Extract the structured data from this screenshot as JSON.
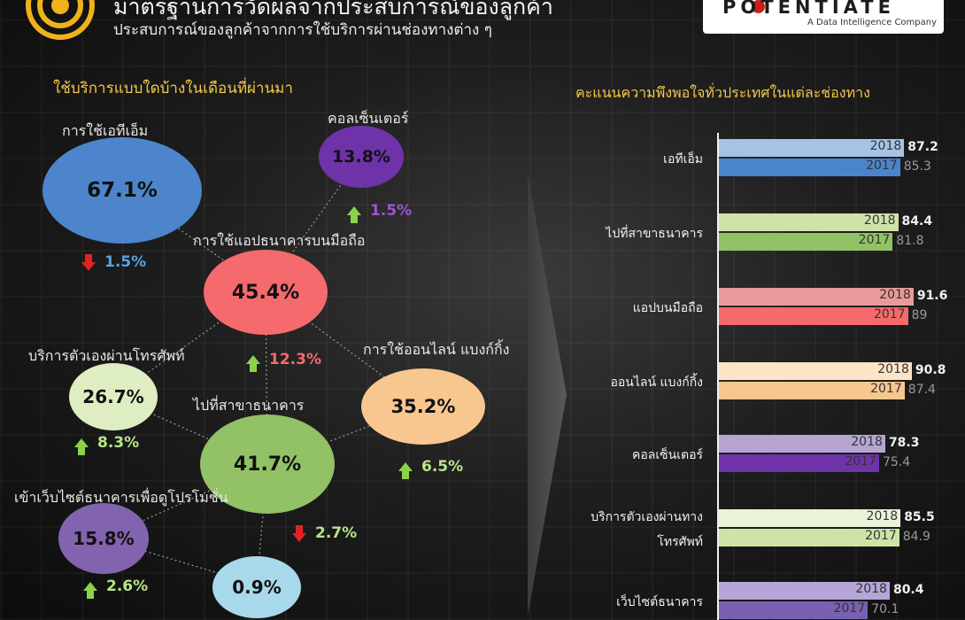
{
  "header": {
    "title": "มาตรฐานการวัดผลจากประสบการณ์ของลูกค้า",
    "subtitle": "ประสบการณ์ของลูกค้าจากการใช้บริการผ่านช่องทางต่าง ๆ",
    "logo_main": "POTENTIATE",
    "logo_sub": "A Data Intelligence Company"
  },
  "left": {
    "heading": "ใช้บริการแบบใดบ้างในเดือนที่ผ่านมา",
    "bubbles": [
      {
        "label": "การใช้เอทีเอ็ม",
        "value": "67.1%",
        "change": "1.5%",
        "dir": "down",
        "color": "#4d85cc"
      },
      {
        "label": "คอลเซ็นเตอร์",
        "value": "13.8%",
        "change": "1.5%",
        "dir": "up",
        "color": "#6e33a8",
        "change_color": "#9b55d6"
      },
      {
        "label": "การใช้แอปธนาคารบนมือถือ",
        "value": "45.4%",
        "change": "12.3%",
        "dir": "up",
        "color": "#f46a6d",
        "change_color": "#f46a6d"
      },
      {
        "label": "บริการตัวเองผ่านโทรศัพท์",
        "value": "26.7%",
        "change": "8.3%",
        "dir": "up",
        "color": "#dfeec2"
      },
      {
        "label": "การใช้ออนไลน์ แบงก์กิ้ง",
        "value": "35.2%",
        "change": "6.5%",
        "dir": "up",
        "color": "#f8c78f"
      },
      {
        "label": "ไปที่สาขาธนาคาร",
        "value": "41.7%",
        "change": "2.7%",
        "dir": "down",
        "color": "#93c166"
      },
      {
        "label": "เข้าเว็บไซต์ธนาคารเพื่อดูโปรโมชั่น",
        "value": "15.8%",
        "change": "2.6%",
        "dir": "up",
        "color": "#8263b0"
      },
      {
        "label": "",
        "value": "0.9%",
        "change": "",
        "dir": "",
        "color": "#a7d9ea"
      }
    ]
  },
  "right": {
    "heading": "คะแนนความพึงพอใจทั่วประเทศในแต่ละช่องทาง"
  },
  "chart_data": {
    "type": "bar",
    "orientation": "horizontal",
    "title": "คะแนนความพึงพอใจทั่วประเทศในแต่ละช่องทาง",
    "categories": [
      "เอทีเอ็ม",
      "ไปที่สาขาธนาคาร",
      "แอปบนมือถือ",
      "ออนไลน์ แบงก์กิ้ง",
      "คอลเซ็นเตอร์",
      "บริการตัวเองผ่านทาง โทรศัพท์",
      "เว็บไซต์ธนาคาร"
    ],
    "series": [
      {
        "name": "2018",
        "values": [
          87.2,
          84.4,
          91.6,
          90.8,
          78.3,
          85.5,
          80.4
        ]
      },
      {
        "name": "2017",
        "values": [
          85.3,
          81.8,
          89,
          87.4,
          75.4,
          84.9,
          70.1
        ]
      }
    ],
    "colors_2018": [
      "#a6c3e6",
      "#cfe3a8",
      "#e89a9a",
      "#fde3c8",
      "#b6a5d3",
      "#eaf2da",
      "#b5a5d8"
    ],
    "colors_2017": [
      "#4a84cd",
      "#93c166",
      "#f46a6d",
      "#f8c78f",
      "#6e33a8",
      "#cfe3a8",
      "#7861b0"
    ],
    "xlim": [
      0,
      100
    ]
  }
}
